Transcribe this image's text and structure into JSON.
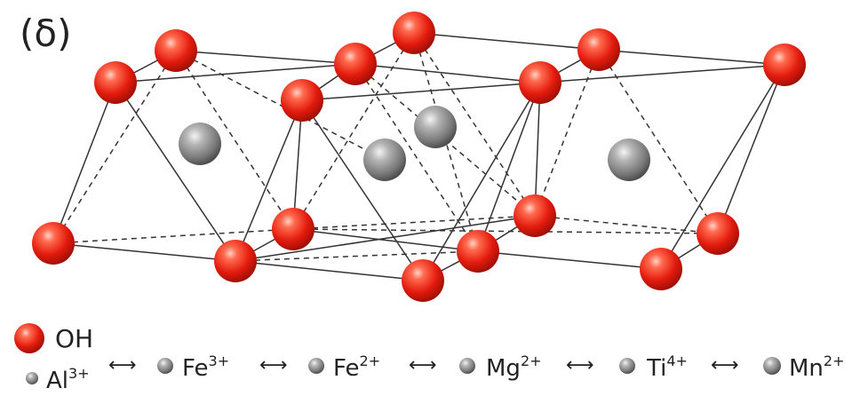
{
  "panel_label": "(δ)",
  "colors": {
    "oh_atom": "#e8261a",
    "cation_atom": "#8a8a8a",
    "bond": "#333333"
  },
  "legend": {
    "oh_label": "OH",
    "arrow": "⟷",
    "ions": [
      {
        "symbol": "Al",
        "charge": "3+"
      },
      {
        "symbol": "Fe",
        "charge": "3+"
      },
      {
        "symbol": "Fe",
        "charge": "2+"
      },
      {
        "symbol": "Mg",
        "charge": "2+"
      },
      {
        "symbol": "Ti",
        "charge": "4+"
      },
      {
        "symbol": "Mn",
        "charge": "2+"
      }
    ]
  }
}
